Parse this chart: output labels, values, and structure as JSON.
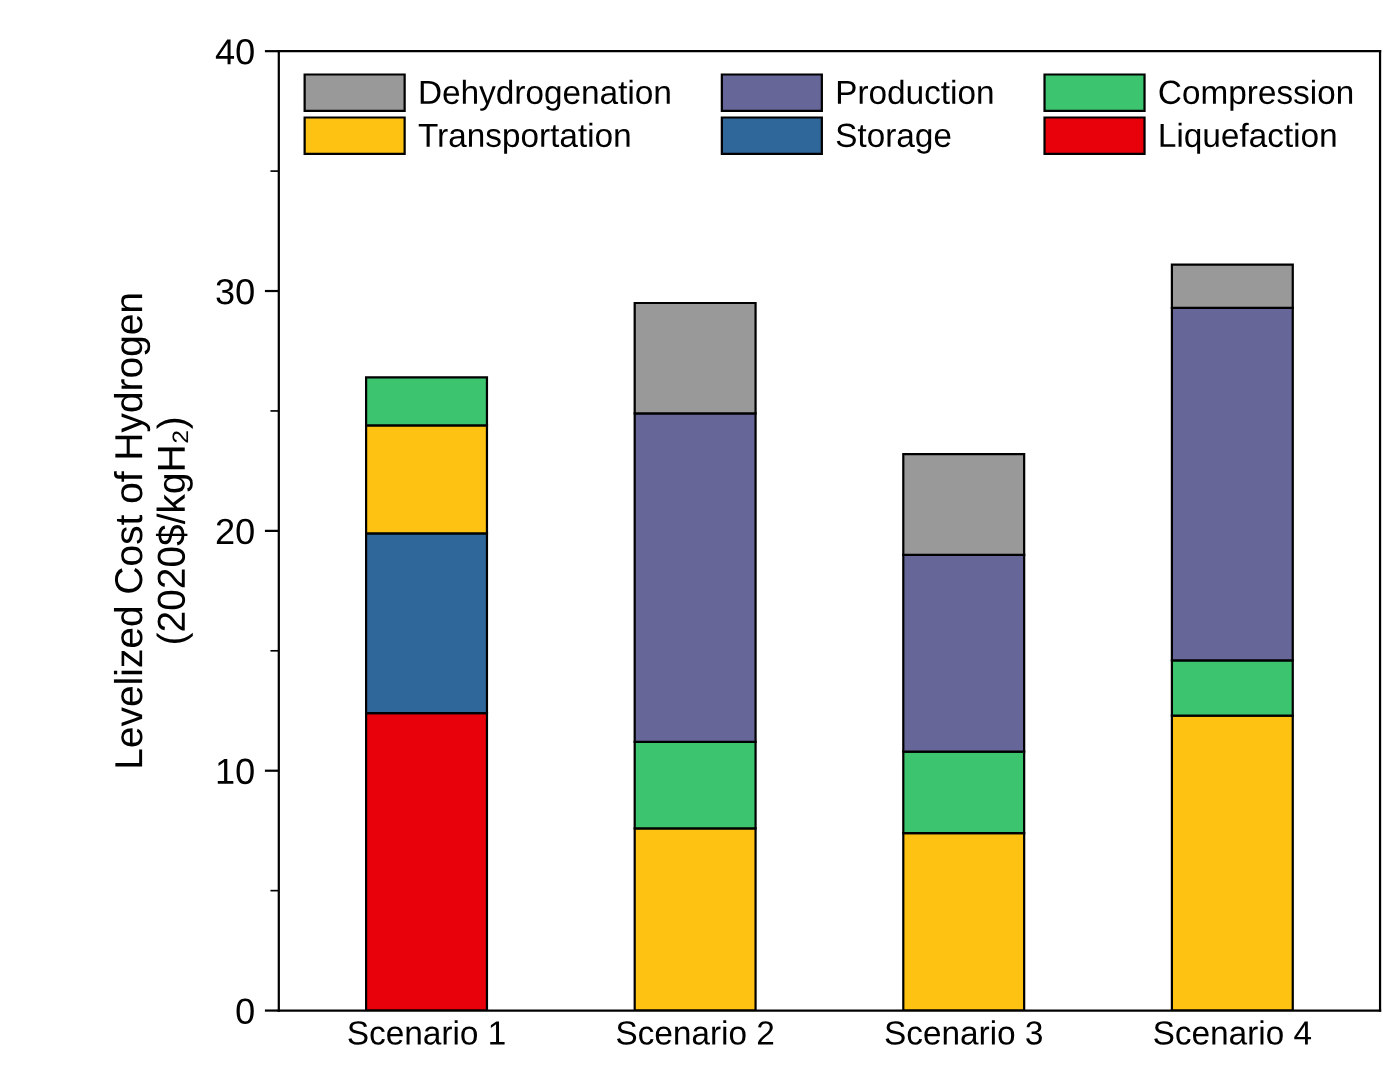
{
  "chart_data": {
    "type": "bar",
    "stacked": true,
    "ylabel": "Levelized Cost of Hydrogen\n(2020$/kgH₂)",
    "categories": [
      "Scenario 1",
      "Scenario 2",
      "Scenario 3",
      "Scenario 4"
    ],
    "series": [
      {
        "name": "Liquefaction",
        "color": "#e8000b",
        "values": [
          12.4,
          null,
          null,
          null
        ]
      },
      {
        "name": "Storage",
        "color": "#30679a",
        "values": [
          7.5,
          null,
          null,
          null
        ]
      },
      {
        "name": "Transportation",
        "color": "#fdc212",
        "values": [
          4.5,
          7.6,
          7.4,
          12.3
        ]
      },
      {
        "name": "Compression",
        "color": "#3dc46f",
        "values": [
          2.0,
          3.6,
          3.4,
          2.3
        ]
      },
      {
        "name": "Production",
        "color": "#666699",
        "values": [
          null,
          13.7,
          8.2,
          14.7
        ]
      },
      {
        "name": "Dehydrogenation",
        "color": "#999999",
        "values": [
          null,
          4.6,
          4.2,
          1.8
        ]
      }
    ],
    "ylim": [
      0,
      40
    ],
    "yticks": [
      0,
      10,
      20,
      30,
      40
    ],
    "legend": "top",
    "grid": false
  }
}
